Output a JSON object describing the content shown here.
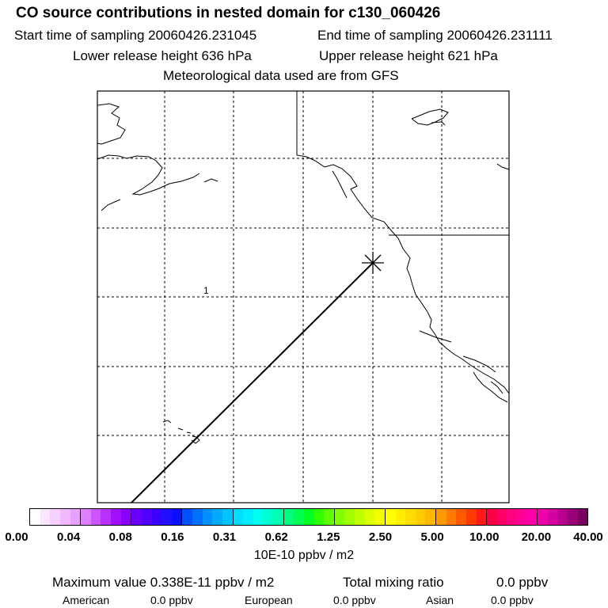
{
  "title": "CO  source contributions in nested domain for c130_060426",
  "header": {
    "start_time": "Start time of sampling 20060426.231045",
    "end_time": "End time of sampling 20060426.231111",
    "lower_release": "Lower release height  636 hPa",
    "upper_release": "Upper release height  621 hPa",
    "met_data": "Meteorological data used are from GFS"
  },
  "map": {
    "label_1": "1",
    "trajectory_color": "#000000",
    "coastline_color": "#000000"
  },
  "colorbar": {
    "tick_labels": [
      "0.00",
      "0.04",
      "0.08",
      "0.16",
      "0.31",
      "0.62",
      "1.25",
      "2.50",
      "5.00",
      "10.00",
      "20.00",
      "40.00"
    ],
    "units": "10E-10 ppbv / m2",
    "groups": [
      [
        "#ffffff",
        "#fbe6ff",
        "#f6d0ff",
        "#f0b8ff",
        "#e8a0ff"
      ],
      [
        "#dd80ff",
        "#cc55ff",
        "#b832ff",
        "#a010ff",
        "#8a00ff"
      ],
      [
        "#6a00ff",
        "#5000ff",
        "#3a00ff",
        "#2010ff",
        "#0a10ff"
      ],
      [
        "#0050ff",
        "#0070ff",
        "#0090ff",
        "#00aaff",
        "#00c4ff"
      ],
      [
        "#00ddff",
        "#00eeff",
        "#00fff0",
        "#00ffd0",
        "#00ffb0"
      ],
      [
        "#00ff80",
        "#00ff50",
        "#00ff20",
        "#30ff00",
        "#60ff00"
      ],
      [
        "#80ff00",
        "#a0ff00",
        "#c0ff00",
        "#ddff00",
        "#f2ff00"
      ],
      [
        "#ffff00",
        "#ffee00",
        "#ffdd00",
        "#ffcc00",
        "#ffb800"
      ],
      [
        "#ff9900",
        "#ff7a00",
        "#ff5a00",
        "#ff3a00",
        "#ff1a1a"
      ],
      [
        "#ff0044",
        "#ff0066",
        "#ff0080",
        "#ff0099",
        "#ff00aa"
      ],
      [
        "#ee00aa",
        "#d400a0",
        "#b80090",
        "#9a0078",
        "#7a0060"
      ]
    ]
  },
  "summary": {
    "max_value": "Maximum value  0.338E-11 ppbv / m2",
    "total_label": "Total mixing ratio",
    "total_value": "0.0 ppbv",
    "american_label": "American",
    "american_value": "0.0 ppbv",
    "european_label": "European",
    "european_value": "0.0 ppbv",
    "asian_label": "Asian",
    "asian_value": "0.0 ppbv"
  }
}
